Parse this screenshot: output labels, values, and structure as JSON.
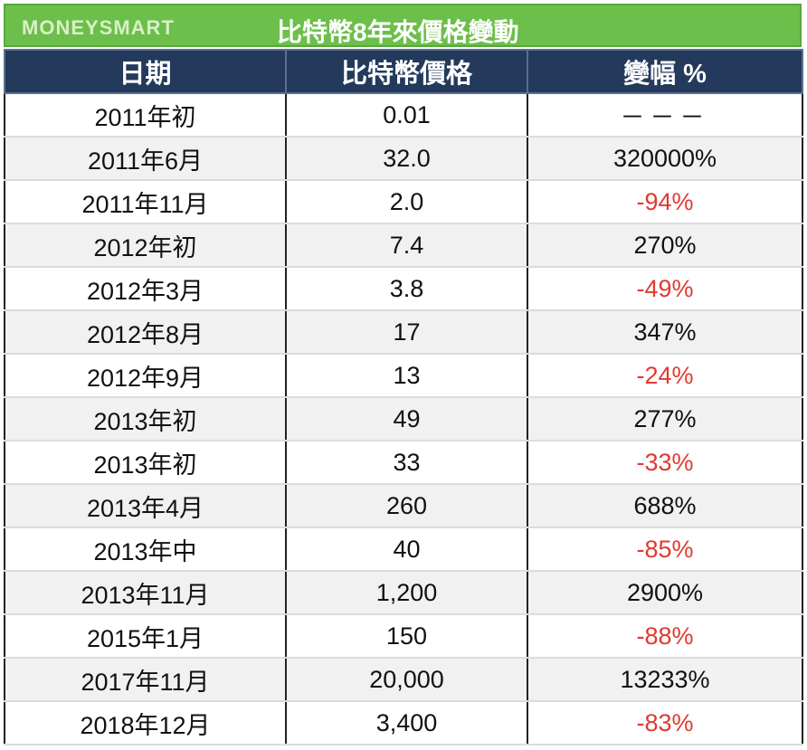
{
  "banner": {
    "brand": "MONEYSMART",
    "title": "比特幣8年來價格變動"
  },
  "table": {
    "headers": [
      "日期",
      "比特幣價格",
      "變幅 %"
    ],
    "rows": [
      {
        "date": "2011年初",
        "price": "0.01",
        "change": "－－－",
        "negative": false
      },
      {
        "date": "2011年6月",
        "price": "32.0",
        "change": "320000%",
        "negative": false
      },
      {
        "date": "2011年11月",
        "price": "2.0",
        "change": "-94%",
        "negative": true
      },
      {
        "date": "2012年初",
        "price": "7.4",
        "change": "270%",
        "negative": false
      },
      {
        "date": "2012年3月",
        "price": "3.8",
        "change": "-49%",
        "negative": true
      },
      {
        "date": "2012年8月",
        "price": "17",
        "change": "347%",
        "negative": false
      },
      {
        "date": "2012年9月",
        "price": "13",
        "change": "-24%",
        "negative": true
      },
      {
        "date": "2013年初",
        "price": "49",
        "change": "277%",
        "negative": false
      },
      {
        "date": "2013年初",
        "price": "33",
        "change": "-33%",
        "negative": true
      },
      {
        "date": "2013年4月",
        "price": "260",
        "change": "688%",
        "negative": false
      },
      {
        "date": "2013年中",
        "price": "40",
        "change": "-85%",
        "negative": true
      },
      {
        "date": "2013年11月",
        "price": "1,200",
        "change": "2900%",
        "negative": false
      },
      {
        "date": "2015年1月",
        "price": "150",
        "change": "-88%",
        "negative": true
      },
      {
        "date": "2017年11月",
        "price": "20,000",
        "change": "13233%",
        "negative": false
      },
      {
        "date": "2018年12月",
        "price": "3,400",
        "change": "-83%",
        "negative": true
      }
    ]
  },
  "colors": {
    "banner_green": "#6cbf4a",
    "header_navy": "#233a5c",
    "negative_red": "#e03a32"
  }
}
